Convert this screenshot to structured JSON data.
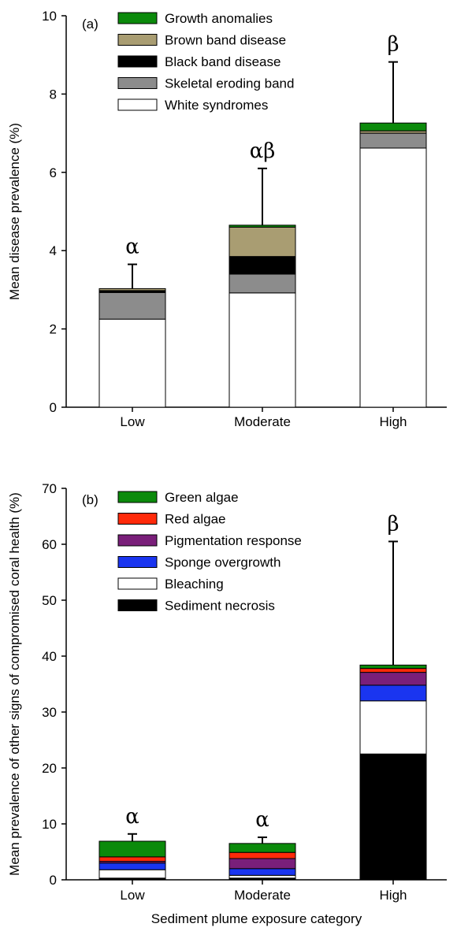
{
  "chart_data": [
    {
      "panel": "(a)",
      "type": "bar",
      "stacked": true,
      "categories": [
        "Low",
        "Moderate",
        "High"
      ],
      "ylabel": "Mean disease prevalence (%)",
      "ylim": [
        0,
        10
      ],
      "yticks": [
        0,
        2,
        4,
        6,
        8,
        10
      ],
      "series": [
        {
          "name": "White syndromes",
          "color": "#ffffff",
          "values": [
            2.25,
            2.92,
            6.62
          ]
        },
        {
          "name": "Skeletal eroding band",
          "color": "#8c8c8c",
          "values": [
            0.68,
            0.48,
            0.38
          ]
        },
        {
          "name": "Black band disease",
          "color": "#000000",
          "values": [
            0.05,
            0.45,
            0.0
          ]
        },
        {
          "name": "Brown band disease",
          "color": "#a99d72",
          "values": [
            0.05,
            0.75,
            0.06
          ]
        },
        {
          "name": "Growth anomalies",
          "color": "#0b8a0b",
          "values": [
            0.0,
            0.05,
            0.2
          ]
        }
      ],
      "error_bar_top": [
        3.65,
        6.1,
        8.82
      ],
      "significance": [
        "α",
        "αβ",
        "β"
      ],
      "legend": [
        "Growth anomalies",
        "Brown band disease",
        "Black band disease",
        "Skeletal eroding band",
        "White syndromes"
      ]
    },
    {
      "panel": "(b)",
      "type": "bar",
      "stacked": true,
      "categories": [
        "Low",
        "Moderate",
        "High"
      ],
      "xlabel": "Sediment plume exposure category",
      "ylabel": "Mean prevalence of other signs of compromised coral health (%)",
      "ylim": [
        0,
        70
      ],
      "yticks": [
        0,
        10,
        20,
        30,
        40,
        50,
        60,
        70
      ],
      "series": [
        {
          "name": "Sediment necrosis",
          "color": "#000000",
          "values": [
            0.3,
            0.3,
            22.5
          ]
        },
        {
          "name": "Bleaching",
          "color": "#ffffff",
          "values": [
            1.5,
            0.5,
            9.5
          ]
        },
        {
          "name": "Sponge overgrowth",
          "color": "#1a35f0",
          "values": [
            1.2,
            1.2,
            2.8
          ]
        },
        {
          "name": "Pigmentation response",
          "color": "#7a1f7a",
          "values": [
            0.3,
            1.8,
            2.3
          ]
        },
        {
          "name": "Red algae",
          "color": "#ff2a0a",
          "values": [
            0.8,
            1.1,
            0.7
          ]
        },
        {
          "name": "Green algae",
          "color": "#0b8a0b",
          "values": [
            2.8,
            1.6,
            0.6
          ]
        }
      ],
      "error_bar_top": [
        8.2,
        7.6,
        60.5
      ],
      "significance": [
        "α",
        "α",
        "β"
      ],
      "legend": [
        "Green algae",
        "Red algae",
        "Pigmentation response",
        "Sponge overgrowth",
        "Bleaching",
        "Sediment necrosis"
      ]
    }
  ]
}
